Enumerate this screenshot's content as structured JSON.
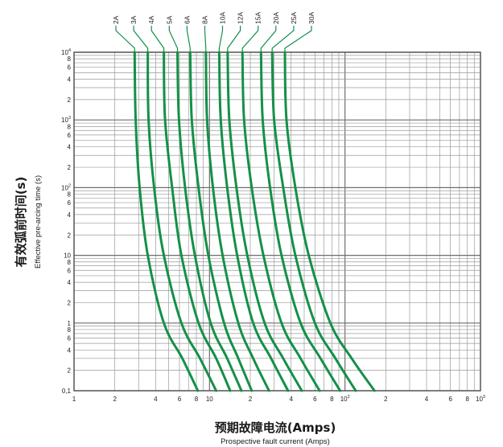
{
  "chart_data": {
    "type": "line",
    "title": "",
    "x_axis": {
      "scale": "log",
      "range": [
        1,
        1000
      ],
      "label_cn": "预期故障电流(Amps)",
      "label_en": "Prospective fault current (Amps)",
      "ticks": [
        {
          "value": 1,
          "base": "1",
          "exp": ""
        },
        {
          "value": 2,
          "base": "2",
          "exp": ""
        },
        {
          "value": 4,
          "base": "4",
          "exp": ""
        },
        {
          "value": 6,
          "base": "6",
          "exp": ""
        },
        {
          "value": 8,
          "base": "8",
          "exp": ""
        },
        {
          "value": 10,
          "base": "10",
          "exp": ""
        },
        {
          "value": 20,
          "base": "2",
          "exp": ""
        },
        {
          "value": 40,
          "base": "4",
          "exp": ""
        },
        {
          "value": 60,
          "base": "6",
          "exp": ""
        },
        {
          "value": 80,
          "base": "8",
          "exp": ""
        },
        {
          "value": 100,
          "base": "10",
          "exp": "2"
        },
        {
          "value": 200,
          "base": "2",
          "exp": ""
        },
        {
          "value": 400,
          "base": "4",
          "exp": ""
        },
        {
          "value": 600,
          "base": "6",
          "exp": ""
        },
        {
          "value": 800,
          "base": "8",
          "exp": ""
        },
        {
          "value": 1000,
          "base": "10",
          "exp": "3"
        }
      ]
    },
    "y_axis": {
      "scale": "log",
      "range": [
        0.1,
        10000
      ],
      "label_cn": "有效弧前时间(s)",
      "label_en": "Effective pre-arcing time (s)",
      "ticks": [
        {
          "value": 0.1,
          "base": "0,1",
          "exp": ""
        },
        {
          "value": 0.2,
          "base": "2",
          "exp": ""
        },
        {
          "value": 0.4,
          "base": "4",
          "exp": ""
        },
        {
          "value": 0.6,
          "base": "6",
          "exp": ""
        },
        {
          "value": 0.8,
          "base": "8",
          "exp": ""
        },
        {
          "value": 1,
          "base": "1",
          "exp": ""
        },
        {
          "value": 2,
          "base": "2",
          "exp": ""
        },
        {
          "value": 4,
          "base": "4",
          "exp": ""
        },
        {
          "value": 6,
          "base": "6",
          "exp": ""
        },
        {
          "value": 8,
          "base": "8",
          "exp": ""
        },
        {
          "value": 10,
          "base": "10",
          "exp": ""
        },
        {
          "value": 20,
          "base": "2",
          "exp": ""
        },
        {
          "value": 40,
          "base": "4",
          "exp": ""
        },
        {
          "value": 60,
          "base": "6",
          "exp": ""
        },
        {
          "value": 80,
          "base": "8",
          "exp": ""
        },
        {
          "value": 100,
          "base": "10",
          "exp": "2"
        },
        {
          "value": 200,
          "base": "2",
          "exp": ""
        },
        {
          "value": 400,
          "base": "4",
          "exp": ""
        },
        {
          "value": 600,
          "base": "6",
          "exp": ""
        },
        {
          "value": 800,
          "base": "8",
          "exp": ""
        },
        {
          "value": 1000,
          "base": "10",
          "exp": "3"
        },
        {
          "value": 2000,
          "base": "2",
          "exp": ""
        },
        {
          "value": 4000,
          "base": "4",
          "exp": ""
        },
        {
          "value": 6000,
          "base": "6",
          "exp": ""
        },
        {
          "value": 8000,
          "base": "8",
          "exp": ""
        },
        {
          "value": 10000,
          "base": "10",
          "exp": "4"
        }
      ]
    },
    "grid": true,
    "series": [
      {
        "name": "2A",
        "points": [
          [
            2.8,
            10000
          ],
          [
            2.85,
            1000
          ],
          [
            3.05,
            100
          ],
          [
            3.5,
            10
          ],
          [
            4.6,
            1
          ],
          [
            6.3,
            0.3
          ],
          [
            8.2,
            0.1
          ]
        ]
      },
      {
        "name": "3A",
        "points": [
          [
            3.5,
            10000
          ],
          [
            3.55,
            1000
          ],
          [
            3.9,
            100
          ],
          [
            4.6,
            10
          ],
          [
            6.2,
            1
          ],
          [
            8.5,
            0.3
          ],
          [
            11.2,
            0.1
          ]
        ]
      },
      {
        "name": "4A",
        "points": [
          [
            4.6,
            10000
          ],
          [
            4.7,
            1000
          ],
          [
            5.3,
            100
          ],
          [
            6.2,
            10
          ],
          [
            8.3,
            1
          ],
          [
            11.2,
            0.3
          ],
          [
            14.2,
            0.1
          ]
        ]
      },
      {
        "name": "5A",
        "points": [
          [
            5.8,
            10000
          ],
          [
            5.95,
            1000
          ],
          [
            6.6,
            100
          ],
          [
            7.8,
            10
          ],
          [
            10.2,
            1
          ],
          [
            13.5,
            0.3
          ],
          [
            17.2,
            0.1
          ]
        ]
      },
      {
        "name": "6A",
        "points": [
          [
            7.2,
            10000
          ],
          [
            7.4,
            1000
          ],
          [
            8.3,
            100
          ],
          [
            9.8,
            10
          ],
          [
            12.8,
            1
          ],
          [
            16.3,
            0.3
          ],
          [
            20.5,
            0.1
          ]
        ]
      },
      {
        "name": "8A",
        "points": [
          [
            9.4,
            10000
          ],
          [
            9.6,
            1000
          ],
          [
            10.6,
            100
          ],
          [
            12.5,
            10
          ],
          [
            16.3,
            1
          ],
          [
            21,
            0.3
          ],
          [
            27.5,
            0.1
          ]
        ]
      },
      {
        "name": "10A",
        "points": [
          [
            11.8,
            10000
          ],
          [
            12.1,
            1000
          ],
          [
            13.5,
            100
          ],
          [
            16,
            10
          ],
          [
            21,
            1
          ],
          [
            28.5,
            0.3
          ],
          [
            38,
            0.1
          ]
        ]
      },
      {
        "name": "12A",
        "points": [
          [
            13.6,
            10000
          ],
          [
            14,
            1000
          ],
          [
            15.8,
            100
          ],
          [
            19,
            10
          ],
          [
            25.5,
            1
          ],
          [
            35,
            0.3
          ],
          [
            48,
            0.1
          ]
        ]
      },
      {
        "name": "15A",
        "points": [
          [
            17.5,
            10000
          ],
          [
            18,
            1000
          ],
          [
            20.5,
            100
          ],
          [
            25,
            10
          ],
          [
            34,
            1
          ],
          [
            47,
            0.3
          ],
          [
            65,
            0.1
          ]
        ]
      },
      {
        "name": "20A",
        "points": [
          [
            24,
            10000
          ],
          [
            24.7,
            1000
          ],
          [
            28,
            100
          ],
          [
            34,
            10
          ],
          [
            47,
            1
          ],
          [
            66,
            0.3
          ],
          [
            92,
            0.1
          ]
        ]
      },
      {
        "name": "25A",
        "points": [
          [
            29,
            10000
          ],
          [
            30,
            1000
          ],
          [
            35,
            100
          ],
          [
            43,
            10
          ],
          [
            60,
            1
          ],
          [
            85,
            0.3
          ],
          [
            120,
            0.1
          ]
        ]
      },
      {
        "name": "30A",
        "points": [
          [
            36,
            10000
          ],
          [
            37,
            1000
          ],
          [
            43,
            100
          ],
          [
            54,
            10
          ],
          [
            78,
            1
          ],
          [
            112,
            0.3
          ],
          [
            165,
            0.1
          ]
        ]
      }
    ]
  },
  "colors": {
    "curve": "#149048",
    "grid_minor": "#9a9a9a",
    "grid_major": "#6e6e6e"
  }
}
